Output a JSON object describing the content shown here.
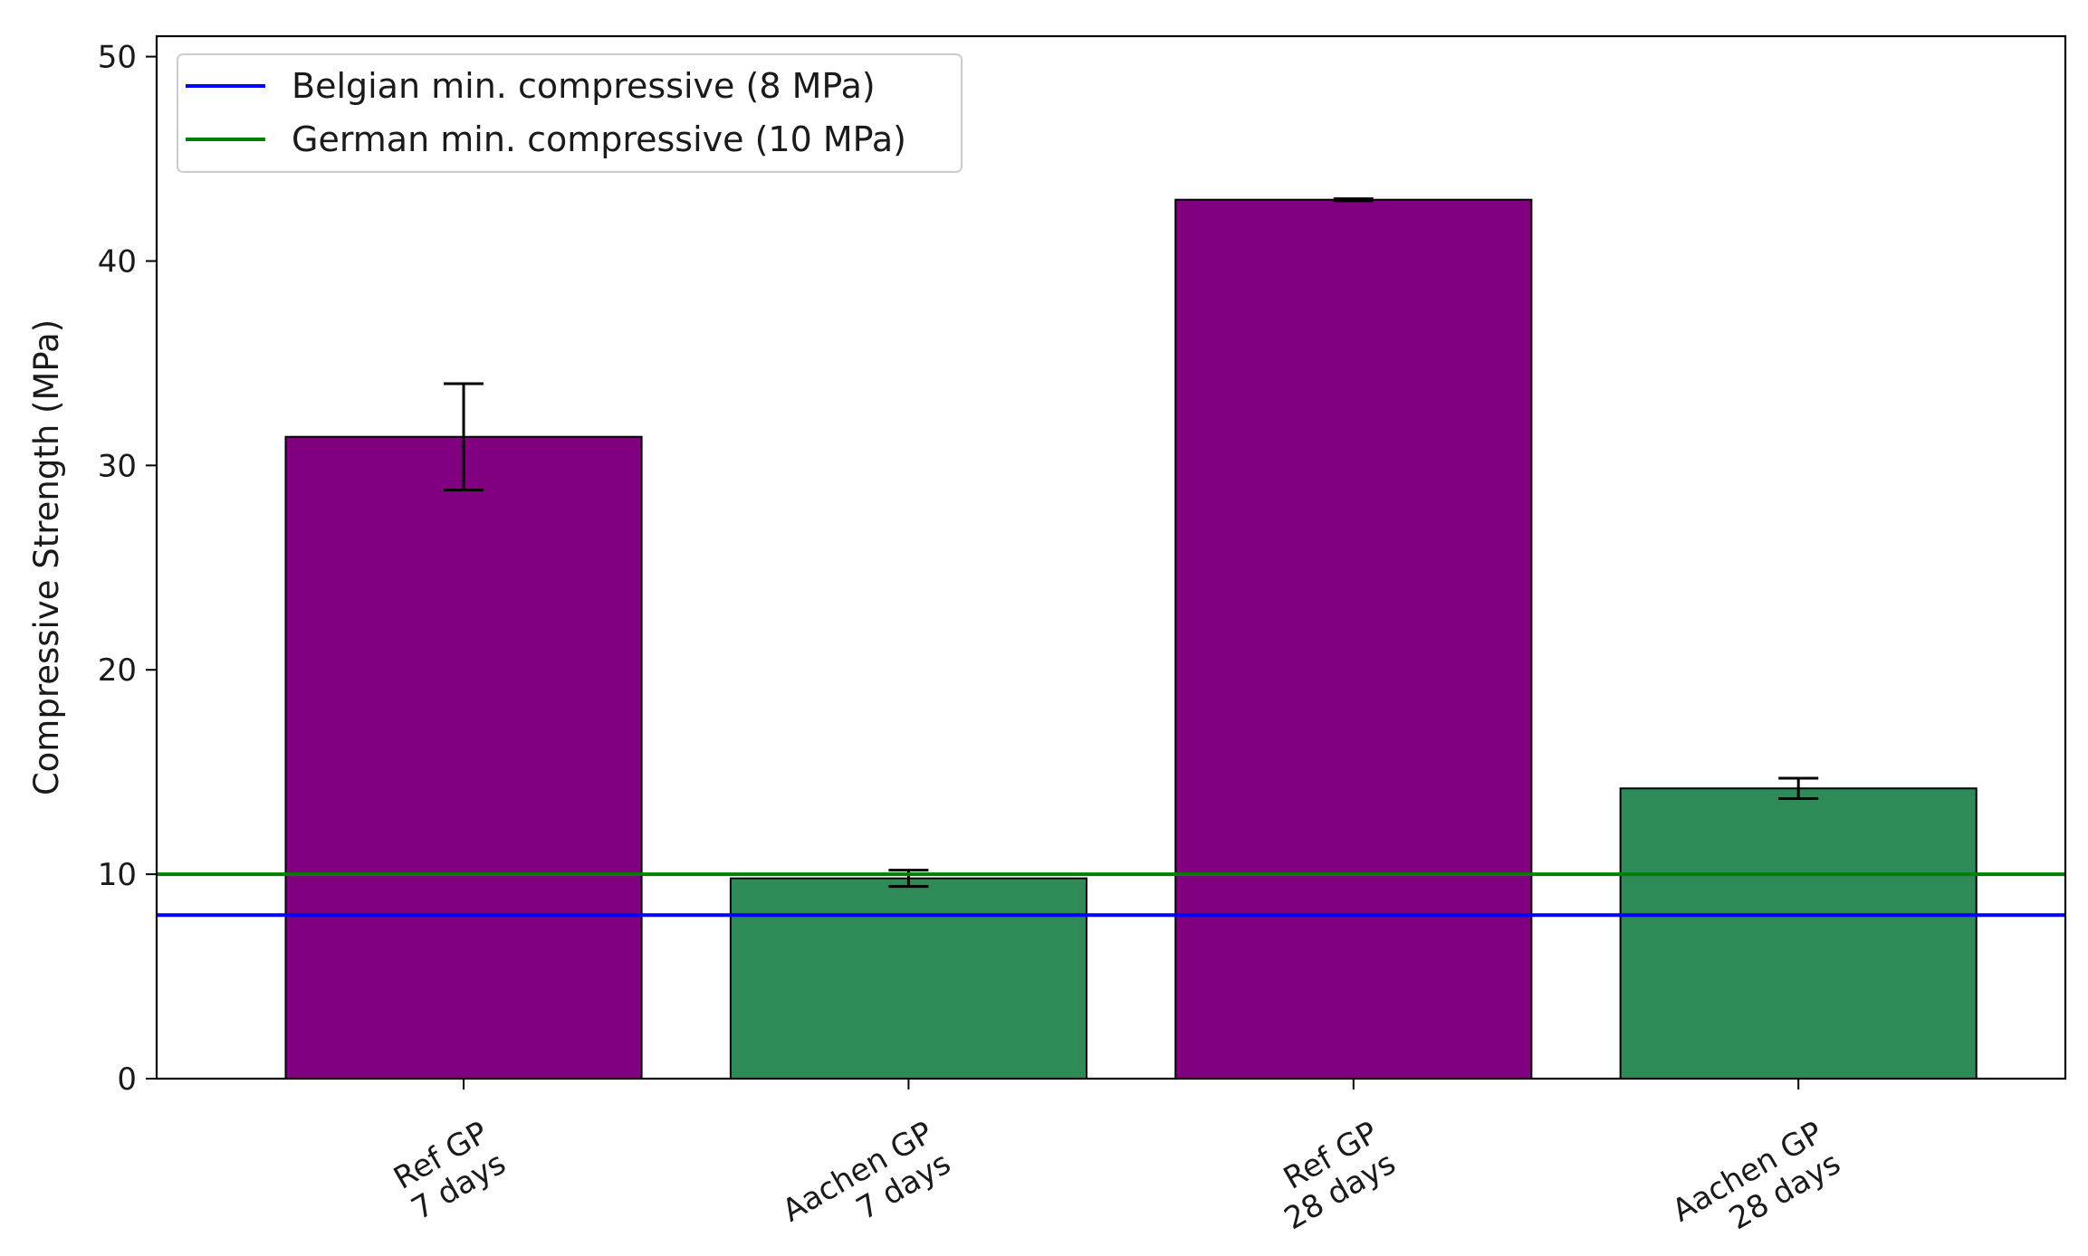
{
  "chart_data": {
    "type": "bar",
    "title": "",
    "xlabel": "",
    "ylabel": "Compressive Strength (MPa)",
    "ylim": [
      0,
      51
    ],
    "yticks": [
      0,
      10,
      20,
      30,
      40,
      50
    ],
    "grid": false,
    "categories": [
      [
        "Ref GP",
        "7 days"
      ],
      [
        "Aachen GP",
        "7 days"
      ],
      [
        "Ref GP",
        "28 days"
      ],
      [
        "Aachen GP",
        "28 days"
      ]
    ],
    "values": [
      31.4,
      9.8,
      43.0,
      14.2
    ],
    "errors": [
      2.6,
      0.4,
      0.05,
      0.5
    ],
    "bar_colors": [
      "#800080",
      "#2e8b57",
      "#800080",
      "#2e8b57"
    ],
    "reference_lines": [
      {
        "name": "Belgian min. compressive (8 MPa)",
        "value": 8,
        "color": "#0000ff"
      },
      {
        "name": "German min. compressive (10 MPa)",
        "value": 10,
        "color": "#008000"
      }
    ],
    "legend_position": "top-left"
  }
}
